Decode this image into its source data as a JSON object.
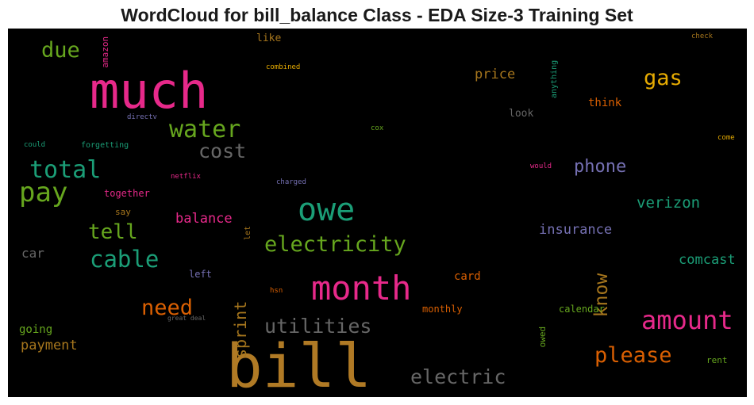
{
  "chart_data": {
    "type": "wordcloud",
    "title": "WordCloud for bill_balance Class - EDA Size-3 Training Set",
    "background": "#000000",
    "words": [
      {
        "text": "bill",
        "color": "#b07a25"
      },
      {
        "text": "much",
        "color": "#e7298a"
      },
      {
        "text": "month",
        "color": "#e7298a"
      },
      {
        "text": "owe",
        "color": "#1b9e77"
      },
      {
        "text": "amount",
        "color": "#e7298a"
      },
      {
        "text": "pay",
        "color": "#66a61e"
      },
      {
        "text": "electricity",
        "color": "#66a61e"
      },
      {
        "text": "water",
        "color": "#66a61e"
      },
      {
        "text": "utilities",
        "color": "#666666"
      },
      {
        "text": "electric",
        "color": "#666666"
      },
      {
        "text": "cable",
        "color": "#1b9e77"
      },
      {
        "text": "total",
        "color": "#1b9e77"
      },
      {
        "text": "cost",
        "color": "#666666"
      },
      {
        "text": "please",
        "color": "#d95f02"
      },
      {
        "text": "need",
        "color": "#d95f02"
      },
      {
        "text": "gas",
        "color": "#e6ab02"
      },
      {
        "text": "tell",
        "color": "#66a61e"
      },
      {
        "text": "due",
        "color": "#66a61e"
      },
      {
        "text": "know",
        "color": "#a6761d"
      },
      {
        "text": "phone",
        "color": "#7570b3"
      },
      {
        "text": "sprint",
        "color": "#a6761d"
      },
      {
        "text": "verizon",
        "color": "#1b9e77"
      },
      {
        "text": "insurance",
        "color": "#7570b3"
      },
      {
        "text": "comcast",
        "color": "#1b9e77"
      },
      {
        "text": "balance",
        "color": "#e7298a"
      },
      {
        "text": "payment",
        "color": "#a6761d"
      },
      {
        "text": "price",
        "color": "#a6761d"
      },
      {
        "text": "car",
        "color": "#666666"
      },
      {
        "text": "card",
        "color": "#d95f02"
      },
      {
        "text": "think",
        "color": "#d95f02"
      },
      {
        "text": "going",
        "color": "#66a61e"
      },
      {
        "text": "monthly",
        "color": "#d95f02"
      },
      {
        "text": "calendar",
        "color": "#66a61e"
      },
      {
        "text": "like",
        "color": "#a6761d"
      },
      {
        "text": "look",
        "color": "#666666"
      },
      {
        "text": "left",
        "color": "#7570b3"
      },
      {
        "text": "say",
        "color": "#a6761d"
      },
      {
        "text": "together",
        "color": "#e7298a"
      },
      {
        "text": "rent",
        "color": "#66a61e"
      },
      {
        "text": "amazon",
        "color": "#e7298a"
      },
      {
        "text": "anything",
        "color": "#1b9e77"
      },
      {
        "text": "owed",
        "color": "#66a61e"
      },
      {
        "text": "let",
        "color": "#a6761d"
      },
      {
        "text": "forgetting",
        "color": "#1b9e77"
      },
      {
        "text": "could",
        "color": "#1b9e77"
      },
      {
        "text": "combined",
        "color": "#e6ab02"
      },
      {
        "text": "directv",
        "color": "#7570b3"
      },
      {
        "text": "netflix",
        "color": "#e7298a"
      },
      {
        "text": "charged",
        "color": "#7570b3"
      },
      {
        "text": "cox",
        "color": "#66a61e"
      },
      {
        "text": "would",
        "color": "#e7298a"
      },
      {
        "text": "come",
        "color": "#e6ab02"
      },
      {
        "text": "check",
        "color": "#a6761d"
      },
      {
        "text": "hsn",
        "color": "#d95f02"
      },
      {
        "text": "great deal",
        "color": "#666666"
      }
    ]
  }
}
